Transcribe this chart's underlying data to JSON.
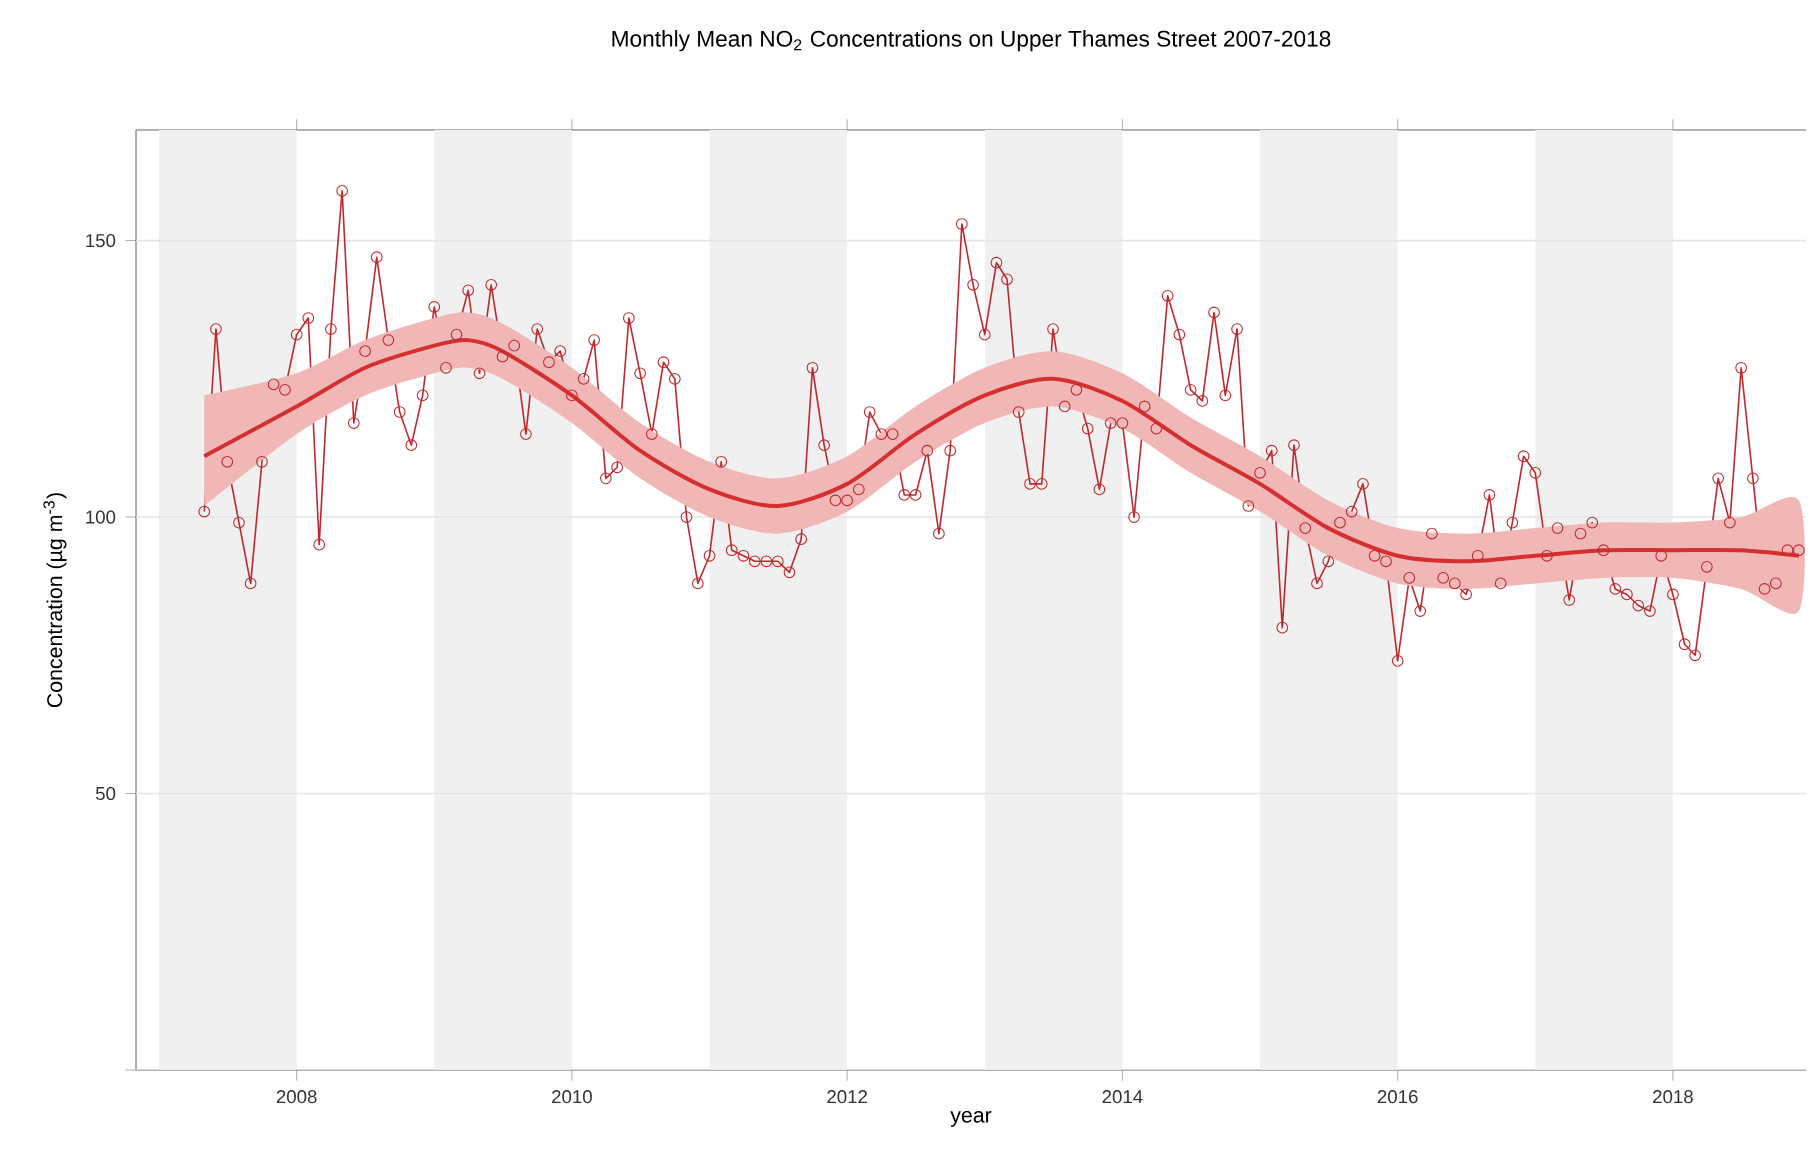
{
  "chart_data": {
    "type": "line",
    "title": "Monthly Mean NO$_{2}$ Concentrations on Upper Thames Street 2007-2018",
    "xlabel": "year",
    "ylabel": "Concentration (µg m$^{-3}$)",
    "x": [
      "2007-05",
      "2007-06",
      "2007-07",
      "2007-08",
      "2007-09",
      "2007-10",
      "2007-11",
      "2007-12",
      "2008-01",
      "2008-02",
      "2008-03",
      "2008-04",
      "2008-05",
      "2008-06",
      "2008-07",
      "2008-08",
      "2008-09",
      "2008-10",
      "2008-11",
      "2008-12",
      "2009-01",
      "2009-02",
      "2009-03",
      "2009-04",
      "2009-05",
      "2009-06",
      "2009-07",
      "2009-08",
      "2009-09",
      "2009-10",
      "2009-11",
      "2009-12",
      "2010-01",
      "2010-02",
      "2010-03",
      "2010-04",
      "2010-05",
      "2010-06",
      "2010-07",
      "2010-08",
      "2010-09",
      "2010-10",
      "2010-11",
      "2010-12",
      "2011-01",
      "2011-02",
      "2011-03",
      "2011-04",
      "2011-05",
      "2011-06",
      "2011-07",
      "2011-08",
      "2011-09",
      "2011-10",
      "2011-11",
      "2011-12",
      "2012-01",
      "2012-02",
      "2012-03",
      "2012-04",
      "2012-05",
      "2012-06",
      "2012-07",
      "2012-08",
      "2012-09",
      "2012-10",
      "2012-11",
      "2012-12",
      "2013-01",
      "2013-02",
      "2013-03",
      "2013-04",
      "2013-05",
      "2013-06",
      "2013-07",
      "2013-08",
      "2013-09",
      "2013-10",
      "2013-11",
      "2013-12",
      "2014-01",
      "2014-02",
      "2014-03",
      "2014-04",
      "2014-05",
      "2014-06",
      "2014-07",
      "2014-08",
      "2014-09",
      "2014-10",
      "2014-11",
      "2014-12",
      "2015-01",
      "2015-02",
      "2015-03",
      "2015-04",
      "2015-05",
      "2015-06",
      "2015-07",
      "2015-08",
      "2015-09",
      "2015-10",
      "2015-11",
      "2015-12",
      "2016-01",
      "2016-02",
      "2016-03",
      "2016-04",
      "2016-05",
      "2016-06",
      "2016-07",
      "2016-08",
      "2016-09",
      "2016-10",
      "2016-11",
      "2016-12",
      "2017-01",
      "2017-02",
      "2017-03",
      "2017-04",
      "2017-05",
      "2017-06",
      "2017-07",
      "2017-08",
      "2017-09",
      "2017-10",
      "2017-11",
      "2017-12",
      "2018-01",
      "2018-02",
      "2018-03",
      "2018-04",
      "2018-05",
      "2018-06",
      "2018-07",
      "2018-08",
      "2018-09",
      "2018-10",
      "2018-11",
      "2018-12"
    ],
    "series": [
      {
        "marker": "circle",
        "color": "#c0282d",
        "values": [
          101,
          134,
          110,
          99,
          88,
          110,
          124,
          123,
          133,
          136,
          95,
          134,
          159,
          117,
          130,
          147,
          132,
          119,
          113,
          122,
          138,
          127,
          133,
          141,
          126,
          142,
          129,
          131,
          115,
          134,
          128,
          130,
          122,
          125,
          132,
          107,
          109,
          136,
          126,
          115,
          128,
          125,
          100,
          88,
          93,
          110,
          94,
          93,
          92,
          92,
          92,
          90,
          96,
          127,
          113,
          103,
          103,
          105,
          119,
          115,
          115,
          104,
          104,
          112,
          97,
          112,
          153,
          142,
          133,
          146,
          143,
          119,
          106,
          106,
          134,
          120,
          123,
          116,
          105,
          117,
          117,
          100,
          120,
          116,
          140,
          133,
          123,
          121,
          137,
          122,
          134,
          102,
          108,
          112,
          80,
          113,
          98,
          88,
          92,
          99,
          101,
          106,
          93,
          92,
          74,
          89,
          83,
          97,
          89,
          88,
          86,
          93,
          104,
          88,
          99,
          111,
          108,
          93,
          98,
          85,
          97,
          99,
          94,
          87,
          86,
          84,
          83,
          93,
          86,
          77,
          75,
          91,
          107,
          99,
          127,
          107,
          87,
          88,
          94,
          94
        ]
      },
      {
        "marker": "none",
        "color": "#d62f2f",
        "x": [
          "2007-05",
          "2008-01",
          "2008-07",
          "2009-01",
          "2009-04",
          "2009-07",
          "2010-01",
          "2010-07",
          "2011-01",
          "2011-07",
          "2012-01",
          "2012-07",
          "2013-01",
          "2013-07",
          "2014-01",
          "2014-07",
          "2015-01",
          "2015-07",
          "2016-01",
          "2016-07",
          "2017-01",
          "2017-07",
          "2018-01",
          "2018-07",
          "2018-12"
        ],
        "values": [
          111,
          120,
          127,
          131,
          132,
          130,
          122,
          112,
          105,
          102,
          106,
          115,
          122,
          125,
          121,
          113,
          106,
          98,
          93,
          92,
          93,
          94,
          94,
          94,
          93
        ],
        "lower": [
          102,
          115,
          122,
          126,
          127,
          125,
          117,
          107,
          100,
          97,
          101,
          110,
          117,
          120,
          116,
          108,
          101,
          93,
          88,
          87,
          88,
          89,
          89,
          87,
          83
        ],
        "upper": [
          122,
          126,
          132,
          136,
          137,
          135,
          127,
          117,
          110,
          107,
          111,
          120,
          127,
          130,
          126,
          118,
          111,
          103,
          98,
          97,
          98,
          99,
          99,
          100,
          103
        ]
      }
    ],
    "xlim": [
      "2006-11-01",
      "2018-12-20"
    ],
    "xticks": [
      "2008",
      "2010",
      "2012",
      "2014",
      "2016",
      "2018"
    ],
    "ylim": [
      0,
      170
    ],
    "yticks": [
      {
        "value": 0,
        "label": null
      },
      50,
      100,
      150
    ],
    "grid": "y",
    "legend": false,
    "bands": [
      {
        "axis": "x",
        "from": "2007",
        "to": "2008",
        "color": "#f0f0f0"
      },
      {
        "axis": "x",
        "from": "2009",
        "to": "2010",
        "color": "#f0f0f0"
      },
      {
        "axis": "x",
        "from": "2011",
        "to": "2012",
        "color": "#f0f0f0"
      },
      {
        "axis": "x",
        "from": "2013",
        "to": "2014",
        "color": "#f0f0f0"
      },
      {
        "axis": "x",
        "from": "2015",
        "to": "2016",
        "color": "#f0f0f0"
      },
      {
        "axis": "x",
        "from": "2017",
        "to": "2018",
        "color": "#f0f0f0"
      }
    ]
  }
}
